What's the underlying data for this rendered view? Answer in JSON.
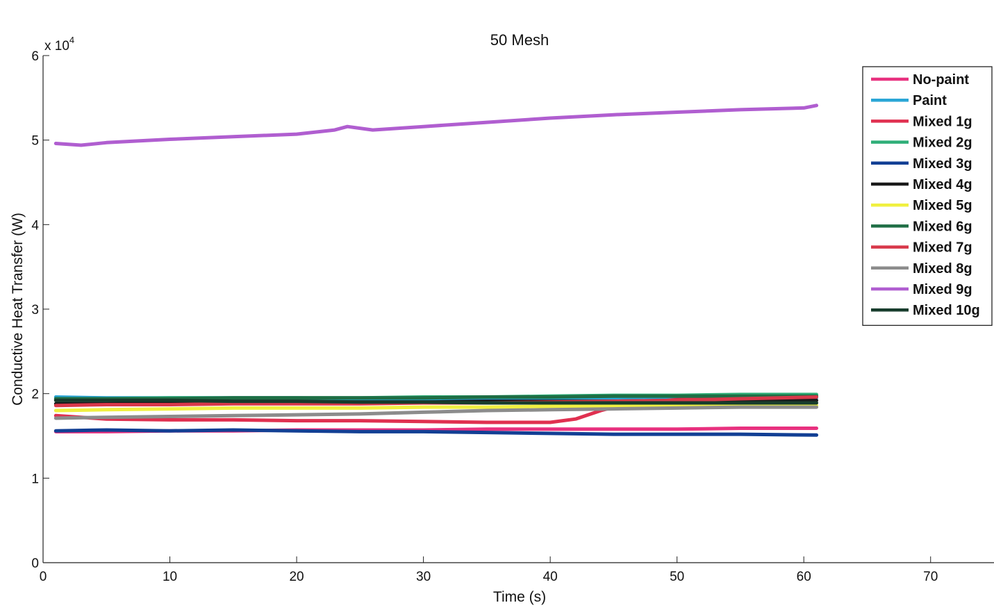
{
  "chart_data": {
    "type": "line",
    "title": "50 Mesh",
    "xlabel": "Time (s)",
    "ylabel": "Conductive Heat Transfer (W)",
    "y_multiplier": "x 10",
    "y_multiplier_exp": "4",
    "xlim": [
      0,
      75
    ],
    "ylim": [
      0,
      6
    ],
    "xticks": [
      0,
      10,
      20,
      30,
      40,
      50,
      60,
      70
    ],
    "yticks": [
      0,
      1,
      2,
      3,
      4,
      5,
      6
    ],
    "legend_position": "top-right",
    "series": [
      {
        "name": "No-paint",
        "color": "#e8317f",
        "x": [
          1,
          5,
          10,
          15,
          20,
          25,
          30,
          35,
          40,
          45,
          50,
          55,
          61
        ],
        "y": [
          1.55,
          1.55,
          1.56,
          1.56,
          1.57,
          1.57,
          1.57,
          1.58,
          1.58,
          1.58,
          1.58,
          1.59,
          1.59
        ]
      },
      {
        "name": "Paint",
        "color": "#2aa6d6",
        "x": [
          1,
          5,
          10,
          15,
          20,
          25,
          30,
          35,
          40,
          45,
          50,
          55,
          61
        ],
        "y": [
          1.96,
          1.95,
          1.95,
          1.95,
          1.95,
          1.94,
          1.94,
          1.94,
          1.94,
          1.94,
          1.94,
          1.95,
          1.95
        ]
      },
      {
        "name": "Mixed 1g",
        "color": "#e03050",
        "x": [
          1,
          5,
          10,
          15,
          20,
          25,
          30,
          35,
          40,
          42,
          44,
          46,
          50,
          55,
          61
        ],
        "y": [
          1.74,
          1.7,
          1.69,
          1.69,
          1.68,
          1.68,
          1.67,
          1.66,
          1.66,
          1.7,
          1.8,
          1.88,
          1.93,
          1.96,
          1.97
        ]
      },
      {
        "name": "Mixed 2g",
        "color": "#2fae78",
        "x": [
          1,
          5,
          10,
          15,
          20,
          25,
          30,
          35,
          40,
          45,
          50,
          55,
          61
        ],
        "y": [
          1.93,
          1.94,
          1.95,
          1.95,
          1.95,
          1.95,
          1.96,
          1.96,
          1.97,
          1.98,
          1.98,
          1.99,
          1.99
        ]
      },
      {
        "name": "Mixed 3g",
        "color": "#123f94",
        "x": [
          1,
          5,
          10,
          15,
          20,
          25,
          30,
          35,
          40,
          45,
          50,
          55,
          61
        ],
        "y": [
          1.56,
          1.57,
          1.56,
          1.57,
          1.56,
          1.55,
          1.55,
          1.54,
          1.53,
          1.52,
          1.52,
          1.52,
          1.51
        ]
      },
      {
        "name": "Mixed 4g",
        "color": "#1a1a1a",
        "x": [
          1,
          5,
          10,
          15,
          20,
          25,
          30,
          35,
          40,
          45,
          50,
          55,
          61
        ],
        "y": [
          1.88,
          1.88,
          1.89,
          1.89,
          1.9,
          1.9,
          1.9,
          1.91,
          1.91,
          1.91,
          1.92,
          1.92,
          1.92
        ]
      },
      {
        "name": "Mixed 5g",
        "color": "#f0f040",
        "x": [
          1,
          5,
          10,
          15,
          20,
          25,
          30,
          35,
          40,
          45,
          50,
          55,
          61
        ],
        "y": [
          1.8,
          1.81,
          1.82,
          1.83,
          1.83,
          1.83,
          1.84,
          1.84,
          1.85,
          1.85,
          1.85,
          1.86,
          1.86
        ]
      },
      {
        "name": "Mixed 6g",
        "color": "#1f6e45",
        "x": [
          1,
          5,
          10,
          15,
          20,
          25,
          30,
          35,
          40,
          45,
          50,
          55,
          61
        ],
        "y": [
          1.94,
          1.94,
          1.94,
          1.95,
          1.95,
          1.95,
          1.95,
          1.96,
          1.96,
          1.97,
          1.97,
          1.97,
          1.97
        ]
      },
      {
        "name": "Mixed 7g",
        "color": "#d8384a",
        "x": [
          1,
          5,
          10,
          15,
          20,
          25,
          30,
          35,
          40,
          45,
          50,
          55,
          61
        ],
        "y": [
          1.86,
          1.87,
          1.87,
          1.88,
          1.88,
          1.88,
          1.89,
          1.89,
          1.9,
          1.91,
          1.92,
          1.94,
          1.96
        ]
      },
      {
        "name": "Mixed 8g",
        "color": "#8c8c8c",
        "x": [
          1,
          5,
          10,
          15,
          20,
          25,
          30,
          35,
          40,
          45,
          50,
          55,
          61
        ],
        "y": [
          1.71,
          1.72,
          1.73,
          1.74,
          1.75,
          1.76,
          1.78,
          1.8,
          1.81,
          1.82,
          1.83,
          1.84,
          1.84
        ]
      },
      {
        "name": "Mixed 9g",
        "color": "#b05ed0",
        "x": [
          1,
          3,
          5,
          10,
          15,
          20,
          23,
          24,
          26,
          30,
          35,
          40,
          45,
          50,
          55,
          60,
          61
        ],
        "y": [
          4.96,
          4.94,
          4.97,
          5.01,
          5.04,
          5.07,
          5.12,
          5.16,
          5.12,
          5.16,
          5.21,
          5.26,
          5.3,
          5.33,
          5.36,
          5.38,
          5.41
        ]
      },
      {
        "name": "Mixed 10g",
        "color": "#173c2c",
        "x": [
          1,
          5,
          10,
          15,
          20,
          25,
          30,
          35,
          40,
          45,
          50,
          55,
          61
        ],
        "y": [
          1.92,
          1.92,
          1.92,
          1.91,
          1.91,
          1.9,
          1.9,
          1.89,
          1.89,
          1.89,
          1.89,
          1.89,
          1.89
        ]
      }
    ]
  }
}
